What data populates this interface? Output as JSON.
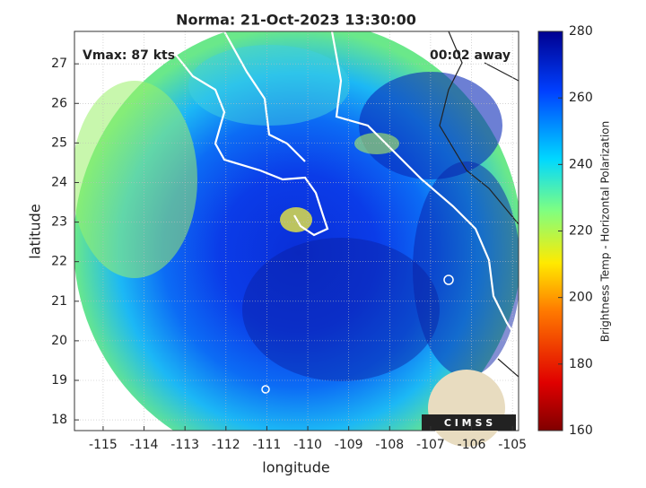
{
  "chart_data": {
    "type": "map",
    "title": "Norma: 21-Oct-2023 13:30:00",
    "annotations": [
      "Vmax: 87 kts",
      "00:02 away"
    ],
    "xlabel": "longitude",
    "ylabel": "latitude",
    "xlim": [
      -115.7,
      -104.85
    ],
    "ylim": [
      17.73,
      27.82
    ],
    "xticks": [
      -115,
      -114,
      -113,
      -112,
      -111,
      -110,
      -109,
      -108,
      -107,
      -106,
      -105
    ],
    "yticks": [
      18,
      19,
      20,
      21,
      22,
      23,
      24,
      25,
      26,
      27
    ],
    "grid": true,
    "colorbar": {
      "label": "Brightness Temp - Horizontal Polarization",
      "lim": [
        160,
        280
      ],
      "ticks": [
        160,
        180,
        200,
        220,
        240,
        260,
        280
      ]
    },
    "logo": "C I M S S"
  }
}
